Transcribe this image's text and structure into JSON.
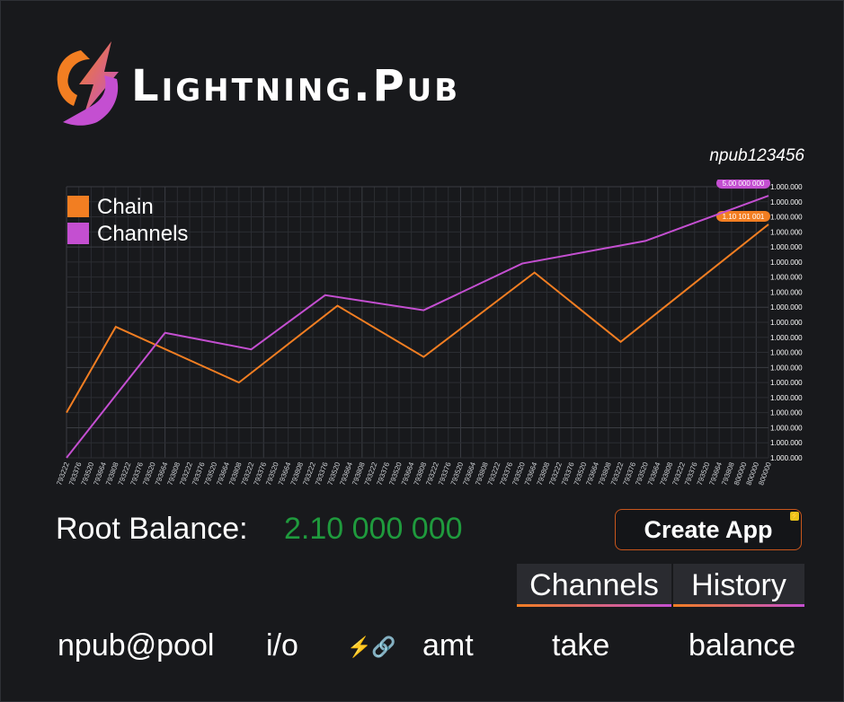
{
  "brand": {
    "name": "Lightning.Pub",
    "logo_colors": {
      "orange": "#f27e22",
      "purple": "#c44fd1"
    }
  },
  "user": {
    "npub": "npub123456"
  },
  "chart_data": {
    "type": "line",
    "legend": {
      "placement": "top-left"
    },
    "grid": true,
    "x_tick_labels": [
      "793222",
      "793376",
      "793520",
      "793664",
      "793808",
      "793222",
      "793376",
      "793520",
      "793664",
      "793808",
      "793222",
      "793376",
      "793520",
      "793664",
      "793808",
      "793222",
      "793376",
      "793520",
      "793664",
      "793808",
      "793222",
      "793376",
      "793520",
      "793664",
      "793808",
      "793222",
      "793376",
      "793520",
      "793664",
      "793808",
      "793222",
      "793376",
      "793520",
      "793664",
      "793808",
      "793222",
      "793376",
      "793520",
      "793664",
      "793808",
      "793222",
      "793376",
      "793520",
      "793664",
      "793808",
      "793222",
      "793376",
      "793520",
      "793664",
      "793808",
      "793222",
      "793376",
      "793520",
      "793664",
      "793808",
      "800000",
      "800000",
      "800000"
    ],
    "y_tick_labels": [
      "1.000.000",
      "1.000.000",
      "1.000.000",
      "1.000.000",
      "1.000.000",
      "1.000.000",
      "1.000.000",
      "1.000.000",
      "1.000.000",
      "1.000.000",
      "1.000.000",
      "1.000.000",
      "1.000.000",
      "1.000.000",
      "1.000.000",
      "1.000.000",
      "1.000.000",
      "1.000.000",
      "1.000.000"
    ],
    "x_range": [
      0,
      57
    ],
    "y_range": [
      0,
      18
    ],
    "series": [
      {
        "name": "Chain",
        "color": "#f27e22",
        "end_label": "1.10 101 001",
        "points": [
          [
            0,
            3
          ],
          [
            4,
            8.7
          ],
          [
            14,
            5
          ],
          [
            22,
            10.1
          ],
          [
            29,
            6.7
          ],
          [
            38,
            12.3
          ],
          [
            45,
            7.7
          ],
          [
            57,
            15.5
          ]
        ]
      },
      {
        "name": "Channels",
        "color": "#c44fd1",
        "end_label": "5.00 000 000",
        "points": [
          [
            0,
            0
          ],
          [
            8,
            8.3
          ],
          [
            15,
            7.2
          ],
          [
            21,
            10.8
          ],
          [
            29,
            9.8
          ],
          [
            37,
            12.9
          ],
          [
            47,
            14.4
          ],
          [
            57,
            17.4
          ]
        ]
      }
    ]
  },
  "balance": {
    "label": "Root Balance:",
    "value": "2.10 000 000"
  },
  "actions": {
    "create_app": "Create App"
  },
  "tabs": [
    {
      "label": "Channels"
    },
    {
      "label": "History"
    }
  ],
  "table": {
    "columns": [
      "npub@pool",
      "i/o",
      "⚡🔗",
      "amt",
      "take",
      "balance"
    ]
  }
}
